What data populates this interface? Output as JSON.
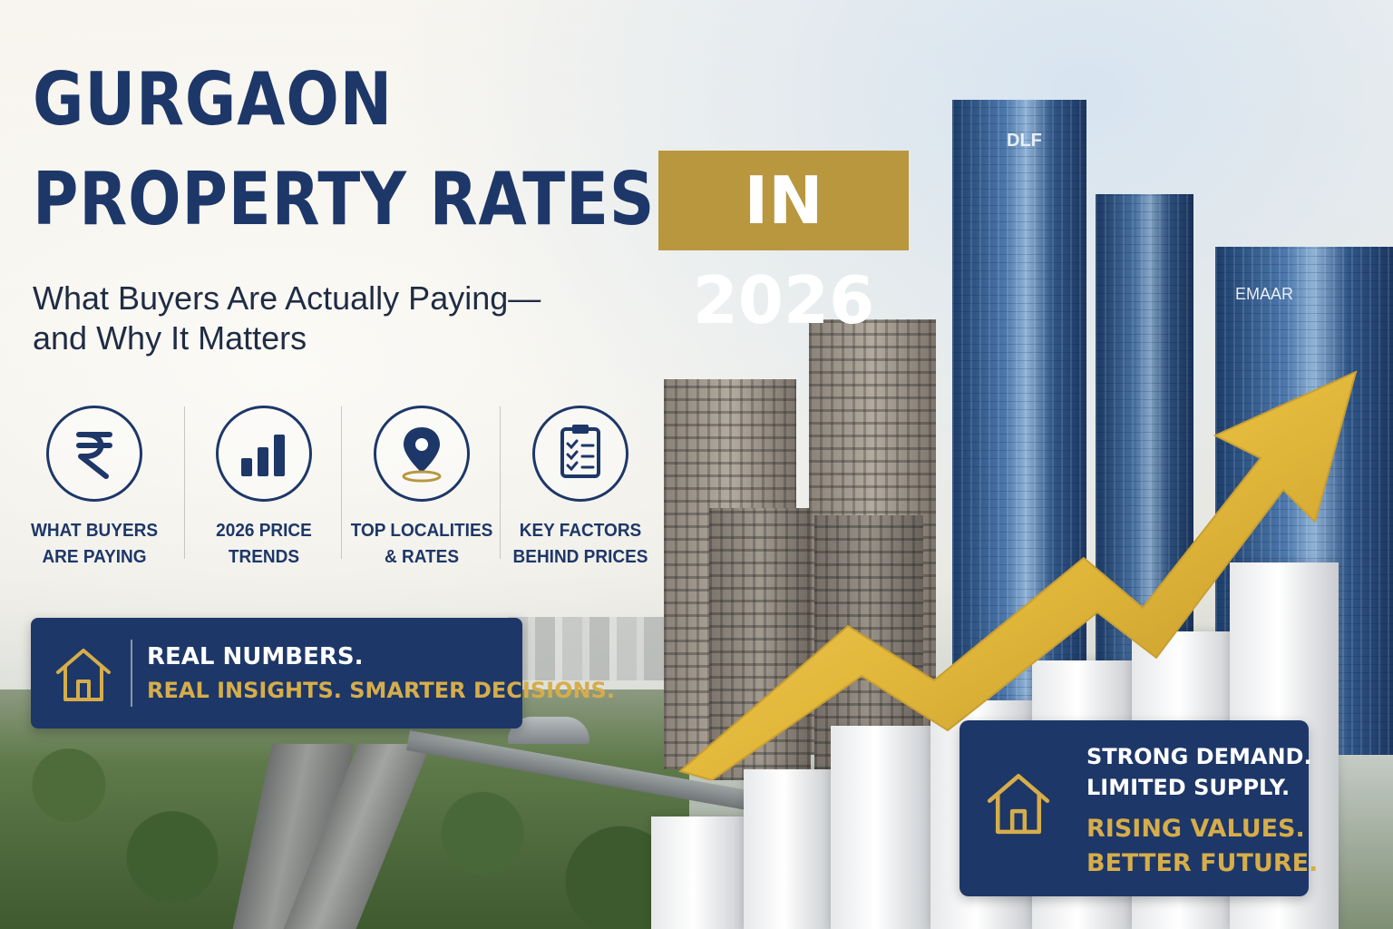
{
  "title": {
    "line1": "GURGAON",
    "line2": "PROPERTY RATES",
    "year_tag": "IN 2026"
  },
  "subtitle": {
    "line1": "What Buyers Are Actually Paying—",
    "line2": "and Why It Matters"
  },
  "features": [
    {
      "icon": "rupee-icon",
      "line1": "WHAT BUYERS",
      "line2": "ARE PAYING"
    },
    {
      "icon": "bar-chart-icon",
      "line1": "2026 PRICE",
      "line2": "TRENDS"
    },
    {
      "icon": "location-pin-icon",
      "line1": "TOP LOCALITIES",
      "line2": "& RATES"
    },
    {
      "icon": "clipboard-checklist-icon",
      "line1": "KEY FACTORS",
      "line2": "BEHIND PRICES"
    }
  ],
  "banner_left": {
    "icon": "house-icon",
    "line1": "REAL NUMBERS.",
    "line2": "REAL INSIGHTS. SMARTER DECISIONS."
  },
  "banner_right": {
    "icon": "house-icon",
    "line1": "STRONG DEMAND.",
    "line2": "LIMITED SUPPLY.",
    "line3": "RISING VALUES.",
    "line4": "BETTER FUTURE."
  },
  "towers": {
    "left_brand": "DLF",
    "right_brand": "EMAAR"
  },
  "colors": {
    "navy": "#1d3768",
    "gold": "#b8973f",
    "gold_text": "#d6ad4a"
  }
}
